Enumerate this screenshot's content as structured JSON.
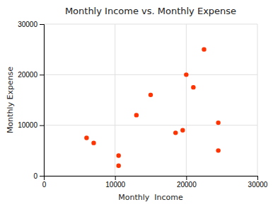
{
  "chart_data": {
    "type": "scatter",
    "title": "Monthly Income vs. Monthly Expense",
    "xlabel": "Monthly  Income",
    "ylabel": "Monthly Expense",
    "x": [
      6000,
      7000,
      10500,
      10500,
      13000,
      15000,
      18500,
      19500,
      20000,
      21000,
      22500,
      24500,
      24500
    ],
    "y": [
      7500,
      6500,
      4000,
      2000,
      12000,
      16000,
      8500,
      9000,
      20000,
      17500,
      25000,
      10500,
      5000
    ],
    "color": "#FF3300",
    "xlim": [
      0,
      30000
    ],
    "ylim": [
      0,
      30000
    ],
    "xticks": [
      0,
      10000,
      20000,
      30000
    ],
    "yticks": [
      0,
      10000,
      20000,
      30000
    ],
    "grid": true
  }
}
